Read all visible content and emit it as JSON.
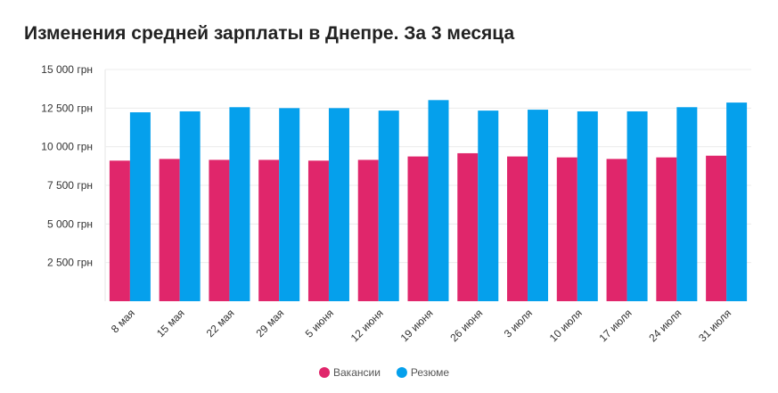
{
  "chart_data": {
    "type": "bar",
    "title": "Изменения средней зарплаты в Днепре. За 3 месяца",
    "categories": [
      "8 мая",
      "15 мая",
      "22 мая",
      "29 мая",
      "5 июня",
      "12 июня",
      "19 июня",
      "26 июня",
      "3 июля",
      "10 июля",
      "17 июля",
      "24 июля",
      "31 июля"
    ],
    "series": [
      {
        "name": "Вакансии",
        "color": "#e0266b",
        "values": [
          9100,
          9210,
          9150,
          9150,
          9100,
          9150,
          9370,
          9580,
          9370,
          9310,
          9210,
          9310,
          9420
        ]
      },
      {
        "name": "Резюме",
        "color": "#05a0ec",
        "values": [
          12230,
          12290,
          12560,
          12500,
          12500,
          12340,
          13020,
          12340,
          12400,
          12290,
          12290,
          12560,
          12860
        ]
      }
    ],
    "yticks": [
      2500,
      5000,
      7500,
      10000,
      12500,
      15000
    ],
    "ytick_labels": [
      "2 500 грн",
      "5 000 грн",
      "7 500 грн",
      "10 000 грн",
      "12 500 грн",
      "15 000 грн"
    ],
    "ylim": [
      0,
      15000
    ],
    "grid": true,
    "legend_position": "bottom"
  }
}
